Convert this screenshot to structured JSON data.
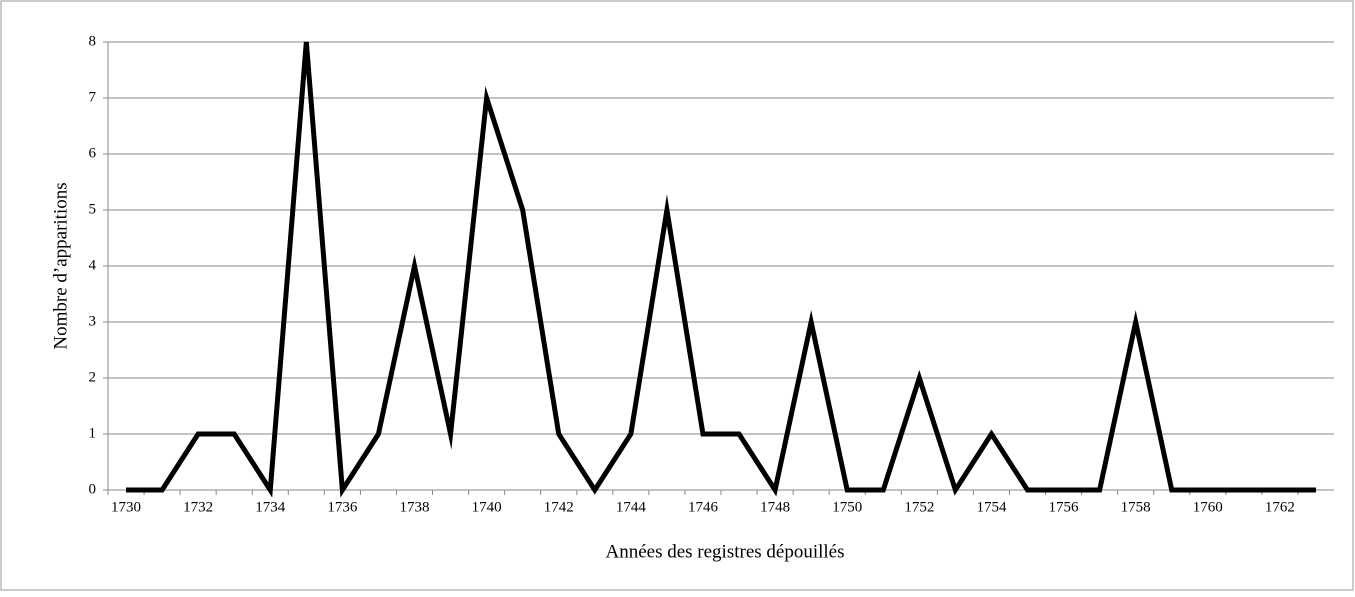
{
  "chart_data": {
    "type": "line",
    "x_label": "Années des registres dépouillés",
    "y_label": "Nombre d’apparitions",
    "categories": [
      1730,
      null,
      1732,
      null,
      1734,
      null,
      1736,
      null,
      1738,
      null,
      1740,
      null,
      1742,
      null,
      1744,
      null,
      1746,
      null,
      1748,
      null,
      1750,
      null,
      1752,
      null,
      1754,
      null,
      1756,
      null,
      1758,
      null,
      1760,
      null,
      1762,
      null
    ],
    "series": [
      {
        "color": "#000000",
        "values": [
          0,
          0,
          1,
          1,
          0,
          8,
          0,
          1,
          4,
          1,
          7,
          5,
          1,
          0,
          1,
          5,
          1,
          1,
          0,
          3,
          0,
          0,
          2,
          0,
          1,
          0,
          0,
          0,
          3,
          0,
          0,
          0,
          0,
          0
        ]
      }
    ],
    "ylim": [
      0,
      8
    ],
    "yticks": [
      0,
      1,
      2,
      3,
      4,
      5,
      6,
      7,
      8
    ],
    "grid": true
  }
}
